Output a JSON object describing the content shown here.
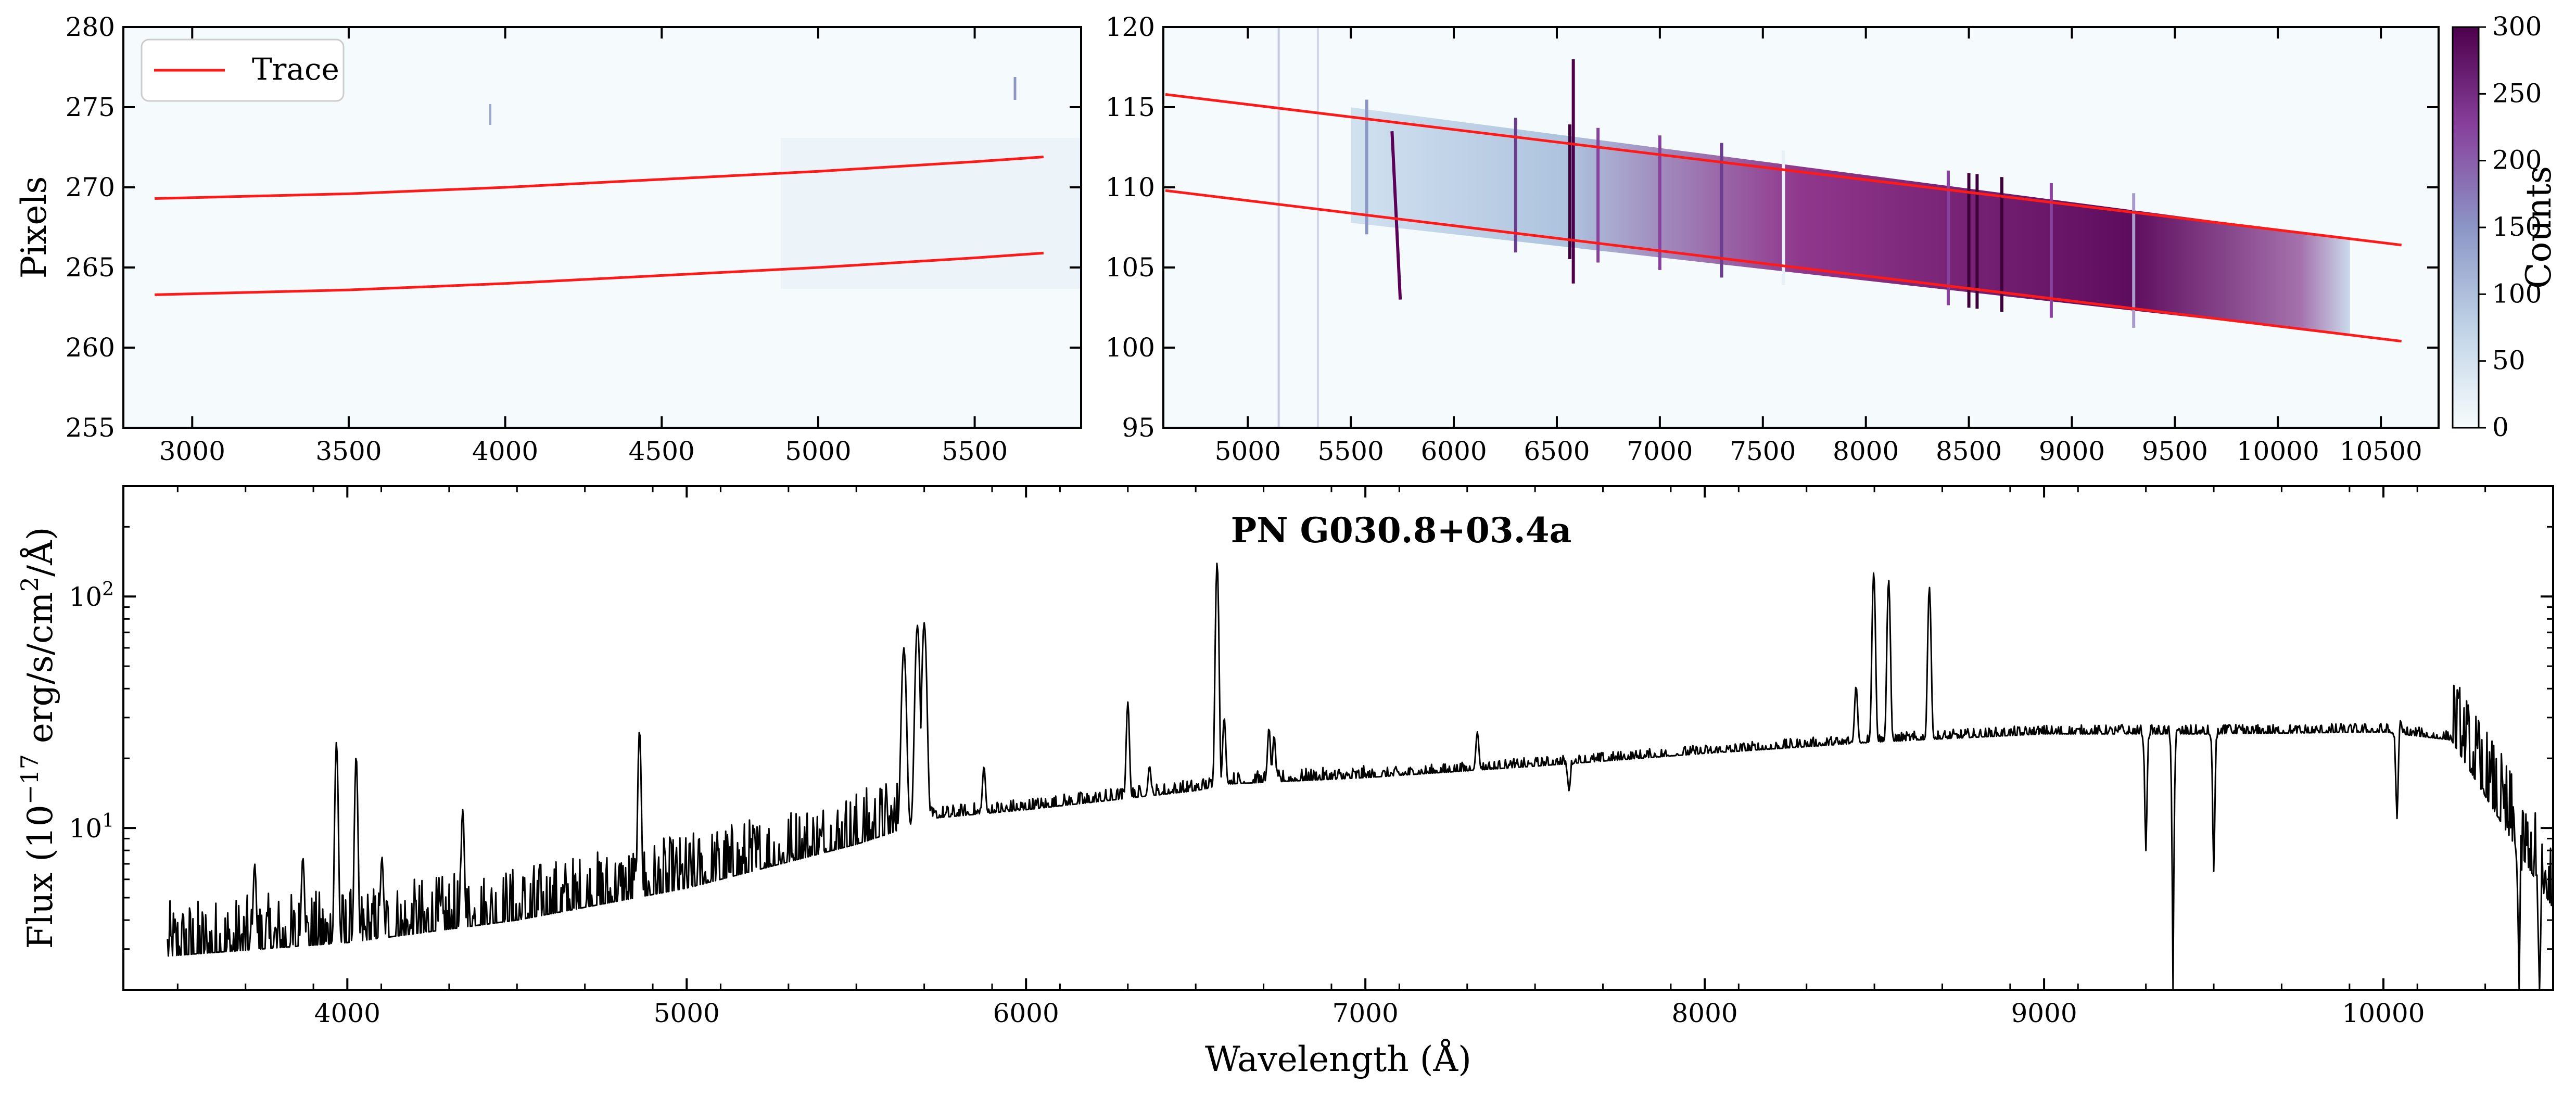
{
  "chart_data": [
    {
      "type": "heatmap",
      "panel": "blue-arm-2d-spectrum",
      "ylabel": "Pixels",
      "xlim": [
        2780,
        5840
      ],
      "ylim": [
        255,
        280
      ],
      "x_ticks": [
        3000,
        3500,
        4000,
        4500,
        5000,
        5500
      ],
      "y_ticks": [
        255,
        260,
        265,
        270,
        275,
        280
      ],
      "x_tick_labels": [
        "3000",
        "3500",
        "4000",
        "4500",
        "5000",
        "5500"
      ],
      "y_tick_labels": [
        "255",
        "260",
        "265",
        "270",
        "275",
        "280"
      ],
      "legend": {
        "entries": [
          "Trace"
        ],
        "location": "top-left"
      },
      "trace_color": "#ff1a1a",
      "series": [
        {
          "name": "Trace upper",
          "x": [
            2880,
            3500,
            4000,
            4500,
            5000,
            5500,
            5720
          ],
          "y": [
            269.3,
            269.6,
            270.0,
            270.5,
            271.0,
            271.6,
            271.9
          ]
        },
        {
          "name": "Trace lower",
          "x": [
            2880,
            3500,
            4000,
            4500,
            5000,
            5500,
            5720
          ],
          "y": [
            263.3,
            263.6,
            264.0,
            264.5,
            265.0,
            265.6,
            265.9
          ]
        }
      ]
    },
    {
      "type": "heatmap",
      "panel": "red-arm-2d-spectrum",
      "xlim": [
        4590,
        10780
      ],
      "ylim": [
        95,
        120
      ],
      "x_ticks": [
        5000,
        5500,
        6000,
        6500,
        7000,
        7500,
        8000,
        8500,
        9000,
        9500,
        10000,
        10500
      ],
      "y_ticks": [
        95,
        100,
        105,
        110,
        115,
        120
      ],
      "x_tick_labels": [
        "5000",
        "5500",
        "6000",
        "6500",
        "7000",
        "7500",
        "8000",
        "8500",
        "9000",
        "9500",
        "10000",
        "10500"
      ],
      "y_tick_labels": [
        "95",
        "100",
        "105",
        "110",
        "115",
        "120"
      ],
      "colorbar": {
        "label": "Counts",
        "range": [
          0,
          300
        ],
        "ticks": [
          0,
          50,
          100,
          150,
          200,
          250,
          300
        ],
        "tick_labels": [
          "0",
          "50",
          "100",
          "150",
          "200",
          "250",
          "300"
        ],
        "colors": [
          "#f7fcfd",
          "#bfd3e6",
          "#8c96c6",
          "#88419d",
          "#4d004b"
        ]
      },
      "trace_color": "#ff1a1a",
      "series": [
        {
          "name": "Trace upper",
          "x": [
            4600,
            10600
          ],
          "y": [
            115.8,
            106.4
          ]
        },
        {
          "name": "Trace lower",
          "x": [
            4600,
            10600
          ],
          "y": [
            109.8,
            100.4
          ]
        }
      ]
    },
    {
      "type": "line",
      "panel": "extracted-1d-spectrum",
      "title": "PN G030.8+03.4a",
      "xlabel": "Wavelength (Å)",
      "ylabel_parts": [
        "Flux (10",
        "−17",
        " erg/s/cm",
        "2",
        "/Å)"
      ],
      "xlim": [
        3340,
        10500
      ],
      "ylim": [
        2,
        300
      ],
      "yscale": "log",
      "x_ticks": [
        4000,
        5000,
        6000,
        7000,
        8000,
        9000,
        10000
      ],
      "x_tick_labels": [
        "4000",
        "5000",
        "6000",
        "7000",
        "8000",
        "9000",
        "10000"
      ],
      "y_tick_labels": [
        {
          "base": "10",
          "exp": "1",
          "value": 10
        },
        {
          "base": "10",
          "exp": "2",
          "value": 100
        }
      ],
      "line_color": "#000000",
      "series": [
        {
          "name": "Flux",
          "continuum": [
            [
              3470,
              2.8
            ],
            [
              4000,
              3.2
            ],
            [
              4500,
              4.0
            ],
            [
              5000,
              5.5
            ],
            [
              5500,
              8.5
            ],
            [
              5690,
              10.5
            ],
            [
              5720,
              11.0
            ],
            [
              6000,
              12.0
            ],
            [
              6500,
              14.5
            ],
            [
              6600,
              15.5
            ],
            [
              7000,
              16.5
            ],
            [
              7500,
              18.5
            ],
            [
              8000,
              21.0
            ],
            [
              8500,
              23.5
            ],
            [
              9000,
              25.5
            ],
            [
              9500,
              25.5
            ],
            [
              10000,
              26.0
            ],
            [
              10200,
              24.0
            ],
            [
              10500,
              4.5
            ]
          ],
          "emission_lines": [
            [
              3727,
              7.0
            ],
            [
              3869,
              7.5
            ],
            [
              3968,
              23.5
            ],
            [
              4026,
              20.5
            ],
            [
              4102,
              7.5
            ],
            [
              4340,
              12.0
            ],
            [
              4861,
              26.5
            ],
            [
              5640,
              60.0
            ],
            [
              5680,
              75.0
            ],
            [
              5700,
              77.0
            ],
            [
              5876,
              18.5
            ],
            [
              6300,
              35.0
            ],
            [
              6364,
              18.5
            ],
            [
              6563,
              140.0
            ],
            [
              6584,
              30.0
            ],
            [
              6716,
              27.0
            ],
            [
              6731,
              25.0
            ],
            [
              7330,
              26.0
            ],
            [
              8446,
              41.0
            ],
            [
              8498,
              127.0
            ],
            [
              8542,
              118.0
            ],
            [
              8662,
              110.0
            ],
            [
              9229,
              28.0
            ],
            [
              9546,
              28.0
            ],
            [
              10049,
              30.0
            ]
          ],
          "absorption_features": [
            [
              7600,
              14.5
            ],
            [
              9300,
              8.0
            ],
            [
              9380,
              2.0
            ],
            [
              9500,
              6.5
            ],
            [
              10040,
              11.0
            ],
            [
              10400,
              2.0
            ],
            [
              10460,
              2.0
            ]
          ]
        }
      ]
    }
  ]
}
